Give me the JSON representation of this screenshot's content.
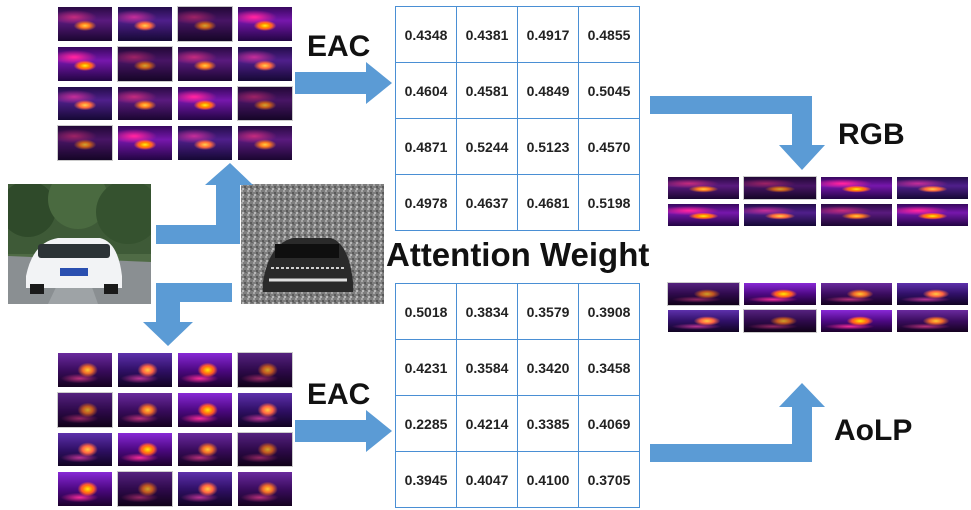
{
  "labels": {
    "eac_top": "EAC",
    "eac_bottom": "EAC",
    "rgb": "RGB",
    "aolp": "AoLP",
    "attention_weight": "Attention Weight"
  },
  "colors": {
    "arrow": "#5b9bd5",
    "matrix_border": "#4a8fd4"
  },
  "attention_rgb": [
    [
      "0.4348",
      "0.4381",
      "0.4917",
      "0.4855"
    ],
    [
      "0.4604",
      "0.4581",
      "0.4849",
      "0.5045"
    ],
    [
      "0.4871",
      "0.5244",
      "0.5123",
      "0.4570"
    ],
    [
      "0.4978",
      "0.4637",
      "0.4681",
      "0.5198"
    ]
  ],
  "attention_aolp": [
    [
      "0.5018",
      "0.3834",
      "0.3579",
      "0.3908"
    ],
    [
      "0.4231",
      "0.3584",
      "0.3420",
      "0.3458"
    ],
    [
      "0.2285",
      "0.4214",
      "0.3385",
      "0.4069"
    ],
    [
      "0.3945",
      "0.4047",
      "0.4100",
      "0.3705"
    ]
  ]
}
